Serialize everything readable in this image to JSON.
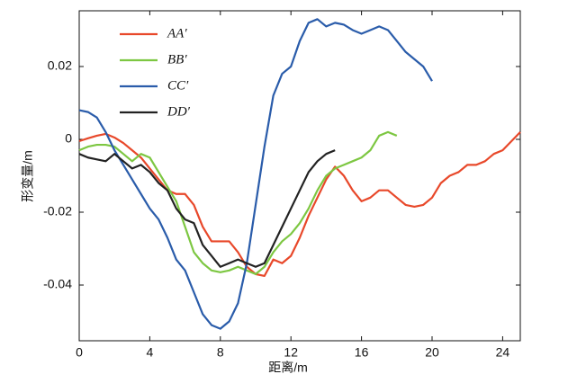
{
  "chart_data": {
    "type": "line",
    "x_label": "距离/m",
    "y_label": "形变量/m",
    "xlim": [
      0,
      25
    ],
    "ylim": [
      -0.0553,
      0.0353
    ],
    "xticks": [
      0,
      4,
      8,
      12,
      16,
      20,
      24
    ],
    "yticks": [
      -0.04,
      -0.02,
      0,
      0.02
    ],
    "legend": "upper left",
    "series": [
      {
        "name": "AA′",
        "color": "#e8482a",
        "x": [
          0,
          0.5,
          1,
          1.5,
          2,
          2.5,
          3,
          3.5,
          4,
          4.5,
          5,
          5.5,
          6,
          6.5,
          7,
          7.5,
          8,
          8.5,
          9,
          9.5,
          10,
          10.5,
          11,
          11.5,
          12,
          12.5,
          13,
          13.5,
          14,
          14.5,
          15,
          15.5,
          16,
          16.5,
          17,
          17.5,
          18,
          18.5,
          19,
          19.5,
          20,
          20.5,
          21,
          21.5,
          22,
          22.5,
          23,
          23.5,
          24,
          24.5,
          25
        ],
        "values": [
          -0.0005,
          0.0003,
          0.001,
          0.0015,
          0.0005,
          -0.001,
          -0.003,
          -0.005,
          -0.008,
          -0.011,
          -0.014,
          -0.015,
          -0.015,
          -0.018,
          -0.024,
          -0.028,
          -0.028,
          -0.028,
          -0.031,
          -0.035,
          -0.037,
          -0.0375,
          -0.033,
          -0.034,
          -0.032,
          -0.027,
          -0.021,
          -0.016,
          -0.011,
          -0.0075,
          -0.01,
          -0.014,
          -0.017,
          -0.016,
          -0.014,
          -0.014,
          -0.016,
          -0.018,
          -0.0185,
          -0.018,
          -0.016,
          -0.012,
          -0.01,
          -0.009,
          -0.007,
          -0.007,
          -0.006,
          -0.004,
          -0.003,
          -0.0005,
          0.002
        ]
      },
      {
        "name": "BB′",
        "color": "#7dc742",
        "x": [
          0,
          0.5,
          1,
          1.5,
          2,
          2.5,
          3,
          3.5,
          4,
          4.5,
          5,
          5.5,
          6,
          6.5,
          7,
          7.5,
          8,
          8.5,
          9,
          9.5,
          10,
          10.5,
          11,
          11.5,
          12,
          12.5,
          13,
          13.5,
          14,
          14.5,
          15,
          15.5,
          16,
          16.5,
          17,
          17.5,
          18
        ],
        "values": [
          -0.003,
          -0.002,
          -0.0015,
          -0.0015,
          -0.002,
          -0.004,
          -0.006,
          -0.004,
          -0.005,
          -0.009,
          -0.013,
          -0.017,
          -0.024,
          -0.031,
          -0.034,
          -0.036,
          -0.0365,
          -0.036,
          -0.035,
          -0.036,
          -0.037,
          -0.035,
          -0.031,
          -0.028,
          -0.026,
          -0.023,
          -0.019,
          -0.014,
          -0.01,
          -0.008,
          -0.007,
          -0.006,
          -0.005,
          -0.003,
          0.001,
          0.002,
          0.001
        ]
      },
      {
        "name": "CC′",
        "color": "#2a5caa",
        "x": [
          0,
          0.5,
          1,
          1.5,
          2,
          2.5,
          3,
          3.5,
          4,
          4.5,
          5,
          5.5,
          6,
          6.5,
          7,
          7.5,
          8,
          8.5,
          9,
          9.5,
          10,
          10.5,
          11,
          11.5,
          12,
          12.5,
          13,
          13.5,
          14,
          14.5,
          15,
          15.5,
          16,
          16.5,
          17,
          17.5,
          18,
          18.5,
          19,
          19.5,
          20
        ],
        "values": [
          0.008,
          0.0075,
          0.006,
          0.002,
          -0.003,
          -0.007,
          -0.011,
          -0.015,
          -0.019,
          -0.022,
          -0.027,
          -0.033,
          -0.036,
          -0.042,
          -0.048,
          -0.051,
          -0.052,
          -0.05,
          -0.045,
          -0.034,
          -0.018,
          -0.002,
          0.012,
          0.018,
          0.02,
          0.027,
          0.032,
          0.033,
          0.031,
          0.032,
          0.0315,
          0.03,
          0.029,
          0.03,
          0.031,
          0.03,
          0.027,
          0.024,
          0.022,
          0.02,
          0.016
        ]
      },
      {
        "name": "DD′",
        "color": "#222222",
        "x": [
          0,
          0.5,
          1,
          1.5,
          2,
          2.5,
          3,
          3.5,
          4,
          4.5,
          5,
          5.5,
          6,
          6.5,
          7,
          7.5,
          8,
          8.5,
          9,
          9.5,
          10,
          10.5,
          11,
          11.5,
          12,
          12.5,
          13,
          13.5,
          14,
          14.5
        ],
        "values": [
          -0.004,
          -0.005,
          -0.0055,
          -0.006,
          -0.004,
          -0.006,
          -0.008,
          -0.007,
          -0.009,
          -0.012,
          -0.014,
          -0.019,
          -0.022,
          -0.023,
          -0.029,
          -0.032,
          -0.035,
          -0.034,
          -0.033,
          -0.034,
          -0.035,
          -0.034,
          -0.029,
          -0.024,
          -0.019,
          -0.014,
          -0.009,
          -0.006,
          -0.004,
          -0.003
        ]
      }
    ]
  }
}
